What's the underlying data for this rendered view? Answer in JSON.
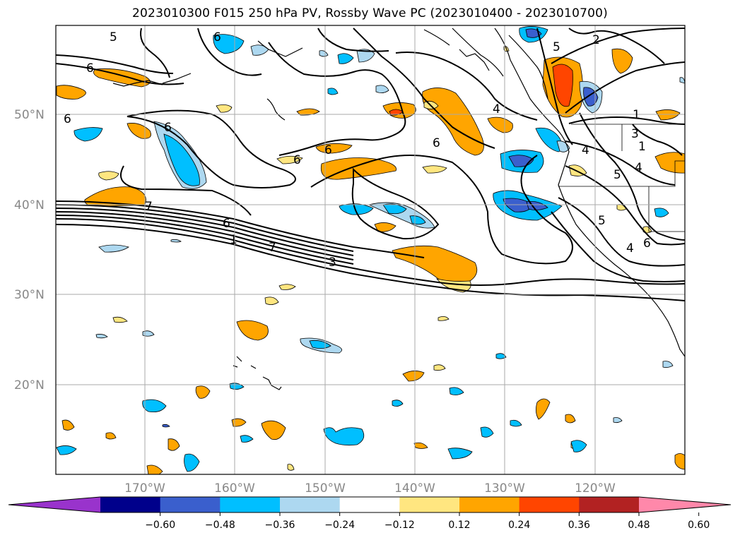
{
  "title": "2023010300 F015 250 hPa PV, Rossby Wave PC (2023010400 - 2023010700)",
  "lat_labels": [
    "50°N",
    "40°N",
    "30°N",
    "20°N"
  ],
  "lon_labels": [
    "170°W",
    "160°W",
    "150°W",
    "140°W",
    "130°W",
    "120°W"
  ],
  "colorbar": {
    "levels": [
      "−0.60",
      "−0.48",
      "−0.36",
      "−0.24",
      "−0.12",
      "0.12",
      "0.24",
      "0.36",
      "0.48",
      "0.60"
    ],
    "colors": [
      "#9933cc",
      "#00008b",
      "#3a5fcd",
      "#00bfff",
      "#add8f0",
      "#ffffff",
      "#ffe680",
      "#ffa500",
      "#ff4500",
      "#b22222",
      "#ff88aa"
    ]
  },
  "contour_labels": [
    "5",
    "6",
    "6",
    "6",
    "7",
    "6",
    "1",
    "7",
    "3",
    "6",
    "6",
    "6",
    "6",
    "4",
    "5",
    "2",
    "1",
    "4",
    "5",
    "4",
    "5",
    "4",
    "6",
    "3",
    "1"
  ],
  "colors": {
    "warm_light": "#ffe680",
    "warm": "#ffa500",
    "warm_strong": "#ff4500",
    "cool_light": "#add8f0",
    "cool": "#00bfff",
    "cool_strong": "#3a5fcd",
    "grid": "#aaaaaa"
  }
}
